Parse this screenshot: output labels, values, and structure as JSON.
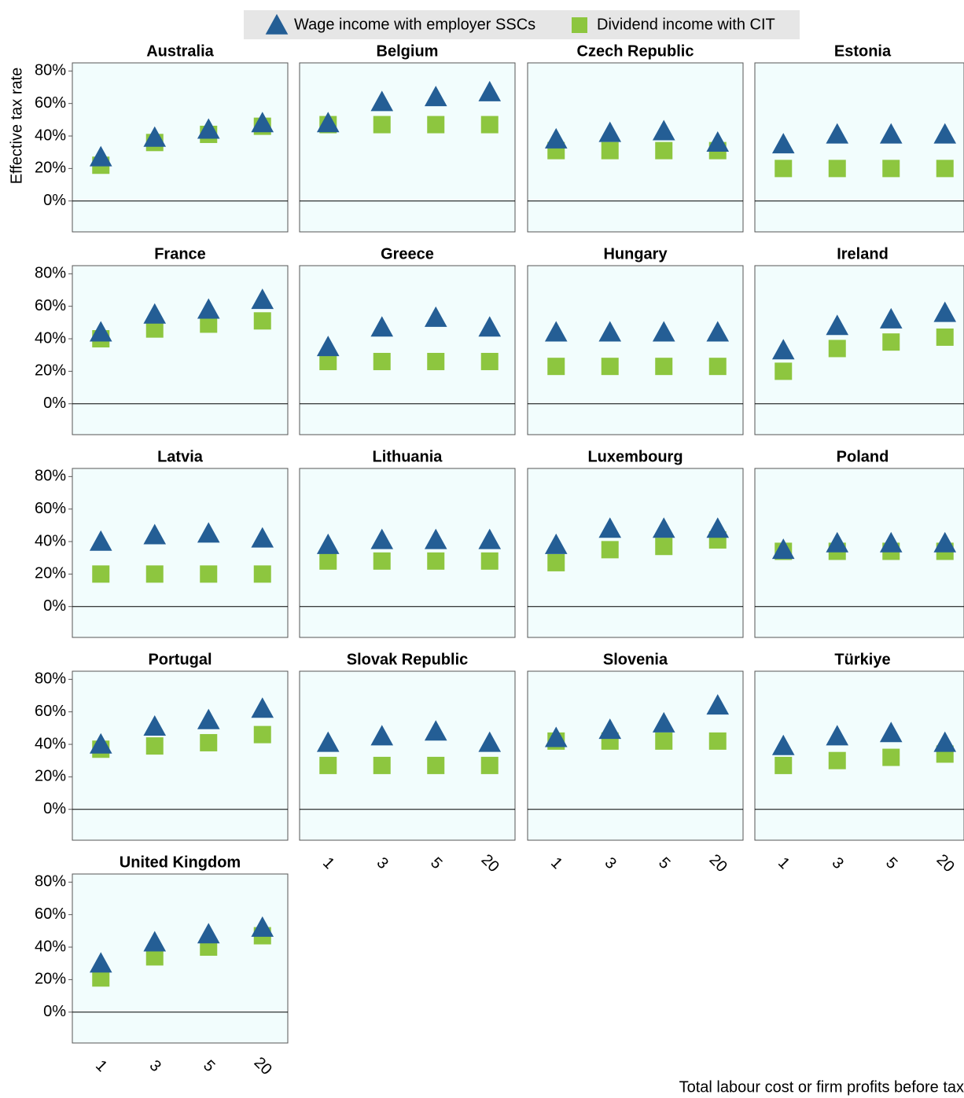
{
  "chart_data": {
    "type": "scatter",
    "ylabel": "Effective tax rate",
    "xlabel": "Total labour cost or firm profits before tax",
    "categories": [
      "1",
      "3",
      "5",
      "20"
    ],
    "ylim": [
      -19,
      85
    ],
    "yticks": [
      {
        "value": 0,
        "label": "0%"
      },
      {
        "value": 20,
        "label": "20%"
      },
      {
        "value": 40,
        "label": "40%"
      },
      {
        "value": 60,
        "label": "60%"
      },
      {
        "value": 80,
        "label": "80%"
      }
    ],
    "series": [
      {
        "name": "Wage income with employer SSCs",
        "color": "#245e95",
        "marker": "triangle"
      },
      {
        "name": "Dividend income with CIT",
        "color": "#8dc63f",
        "marker": "square"
      }
    ],
    "panels": [
      {
        "title": "Australia",
        "series": [
          {
            "values": [
              27,
              39,
              44,
              48
            ]
          },
          {
            "values": [
              22,
              36,
              41,
              46
            ]
          }
        ]
      },
      {
        "title": "Belgium",
        "series": [
          {
            "values": [
              48,
              61,
              64,
              67
            ]
          },
          {
            "values": [
              47,
              47,
              47,
              47
            ]
          }
        ]
      },
      {
        "title": "Czech Republic",
        "series": [
          {
            "values": [
              38,
              42,
              43,
              36
            ]
          },
          {
            "values": [
              31,
              31,
              31,
              31
            ]
          }
        ]
      },
      {
        "title": "Estonia",
        "series": [
          {
            "values": [
              35,
              41,
              41,
              41
            ]
          },
          {
            "values": [
              20,
              20,
              20,
              20
            ]
          }
        ]
      },
      {
        "title": "France",
        "series": [
          {
            "values": [
              44,
              55,
              58,
              64
            ]
          },
          {
            "values": [
              40,
              46,
              49,
              51
            ]
          }
        ]
      },
      {
        "title": "Greece",
        "series": [
          {
            "values": [
              35,
              47,
              53,
              47
            ]
          },
          {
            "values": [
              26,
              26,
              26,
              26
            ]
          }
        ]
      },
      {
        "title": "Hungary",
        "series": [
          {
            "values": [
              44,
              44,
              44,
              44
            ]
          },
          {
            "values": [
              23,
              23,
              23,
              23
            ]
          }
        ]
      },
      {
        "title": "Ireland",
        "series": [
          {
            "values": [
              33,
              48,
              52,
              56
            ]
          },
          {
            "values": [
              20,
              34,
              38,
              41
            ]
          }
        ]
      },
      {
        "title": "Latvia",
        "series": [
          {
            "values": [
              40,
              44,
              45,
              42
            ]
          },
          {
            "values": [
              20,
              20,
              20,
              20
            ]
          }
        ]
      },
      {
        "title": "Lithuania",
        "series": [
          {
            "values": [
              38,
              41,
              41,
              41
            ]
          },
          {
            "values": [
              28,
              28,
              28,
              28
            ]
          }
        ]
      },
      {
        "title": "Luxembourg",
        "series": [
          {
            "values": [
              38,
              48,
              48,
              48
            ]
          },
          {
            "values": [
              27,
              35,
              37,
              41
            ]
          }
        ]
      },
      {
        "title": "Poland",
        "series": [
          {
            "values": [
              35,
              39,
              39,
              39
            ]
          },
          {
            "values": [
              34,
              34,
              34,
              34
            ]
          }
        ]
      },
      {
        "title": "Portugal",
        "series": [
          {
            "values": [
              40,
              51,
              55,
              62
            ]
          },
          {
            "values": [
              37,
              39,
              41,
              46
            ]
          }
        ]
      },
      {
        "title": "Slovak Republic",
        "series": [
          {
            "values": [
              41,
              45,
              48,
              41
            ]
          },
          {
            "values": [
              27,
              27,
              27,
              27
            ]
          }
        ]
      },
      {
        "title": "Slovenia",
        "series": [
          {
            "values": [
              44,
              49,
              53,
              64
            ]
          },
          {
            "values": [
              42,
              42,
              42,
              42
            ]
          }
        ]
      },
      {
        "title": "Türkiye",
        "series": [
          {
            "values": [
              39,
              45,
              47,
              41
            ]
          },
          {
            "values": [
              27,
              30,
              32,
              34
            ]
          }
        ]
      },
      {
        "title": "United Kingdom",
        "series": [
          {
            "values": [
              30,
              43,
              48,
              52
            ]
          },
          {
            "values": [
              21,
              34,
              40,
              47
            ]
          }
        ]
      }
    ]
  }
}
